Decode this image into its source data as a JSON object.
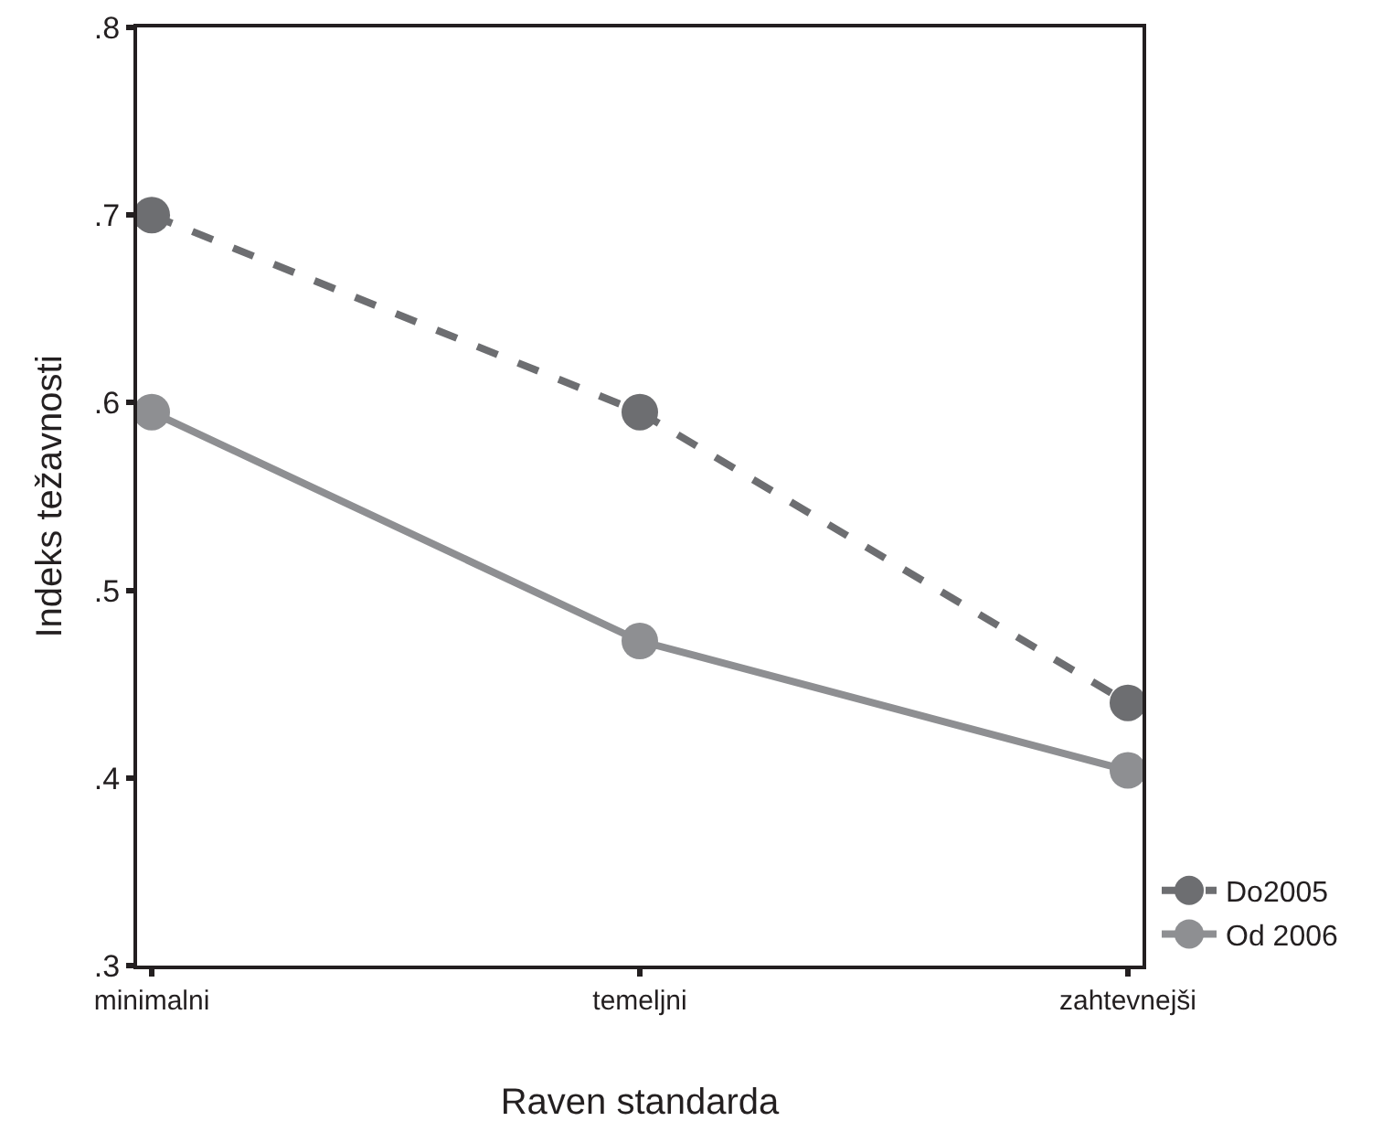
{
  "chart_data": {
    "type": "line",
    "xlabel": "Raven standarda",
    "ylabel": "Indeks težavnosti",
    "categories": [
      "minimalni",
      "temeljni",
      "zahtevnejši"
    ],
    "series": [
      {
        "name": "Do2005",
        "color": "#6d6e71",
        "values": [
          0.7,
          0.595,
          0.44
        ],
        "line_style": "dashed"
      },
      {
        "name": "Od 2006",
        "color": "#8e8f92",
        "values": [
          0.595,
          0.473,
          0.404
        ],
        "line_style": "solid"
      }
    ],
    "ylim": [
      0.3,
      0.8
    ],
    "yticks": [
      {
        "value": 0.3,
        "label": ".3"
      },
      {
        "value": 0.4,
        "label": ".4"
      },
      {
        "value": 0.5,
        "label": ".5"
      },
      {
        "value": 0.6,
        "label": ".6"
      },
      {
        "value": 0.7,
        "label": ".7"
      },
      {
        "value": 0.8,
        "label": ".8"
      }
    ],
    "grid": false,
    "legend": "bottom right",
    "marker": "circle"
  }
}
